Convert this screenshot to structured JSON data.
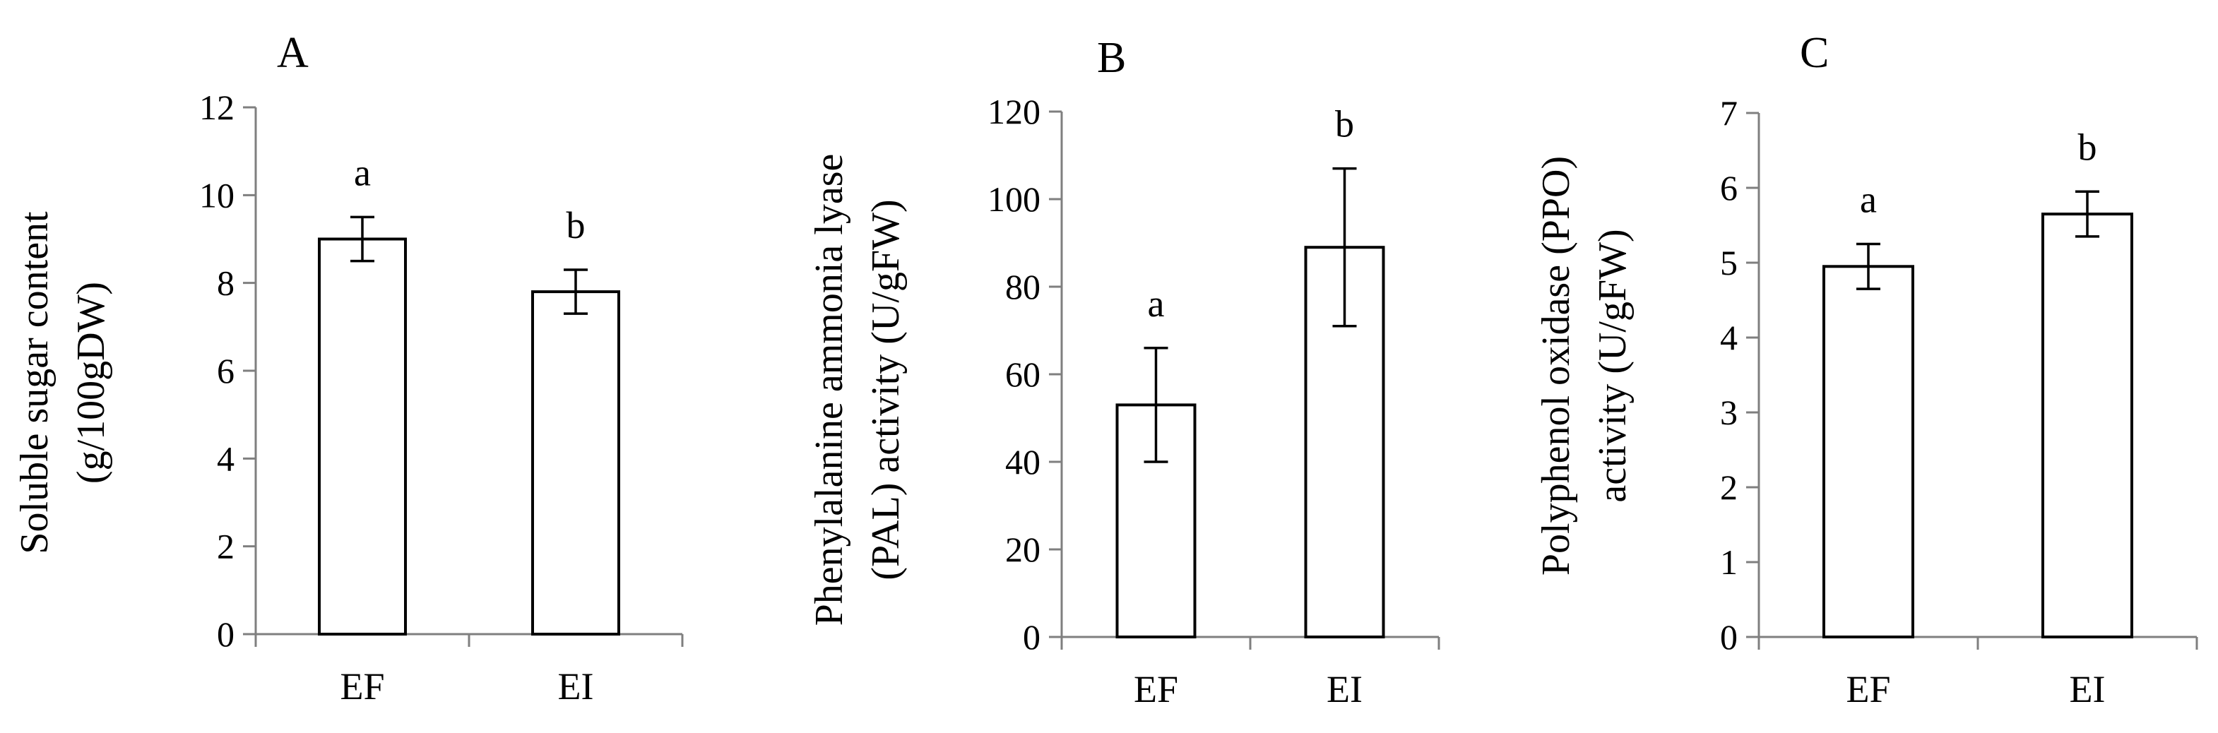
{
  "chart_data": [
    {
      "type": "bar",
      "panel_label": "A",
      "ylabel_lines": [
        "Soluble sugar content",
        "(g/100gDW)"
      ],
      "categories": [
        "EF",
        "EI"
      ],
      "values": [
        9.0,
        7.8
      ],
      "errors": [
        0.5,
        0.5
      ],
      "significance": [
        "a",
        "b"
      ],
      "ylim": [
        0,
        12
      ],
      "yticks": [
        0,
        2,
        4,
        6,
        8,
        10,
        12
      ],
      "grid": false,
      "legend": "none"
    },
    {
      "type": "bar",
      "panel_label": "B",
      "ylabel_lines": [
        "Phenylalanine ammonia lyase",
        "(PAL) activity (U/gFW)"
      ],
      "categories": [
        "EF",
        "EI"
      ],
      "values": [
        53,
        89
      ],
      "errors": [
        13,
        18
      ],
      "significance": [
        "a",
        "b"
      ],
      "ylim": [
        0,
        120
      ],
      "yticks": [
        0,
        20,
        40,
        60,
        80,
        100,
        120
      ],
      "grid": false,
      "legend": "none"
    },
    {
      "type": "bar",
      "panel_label": "C",
      "ylabel_lines": [
        "Polyphenol oxidase (PPO)",
        "activity (U/gFW)"
      ],
      "categories": [
        "EF",
        "EI"
      ],
      "values": [
        4.95,
        5.65
      ],
      "errors": [
        0.3,
        0.3
      ],
      "significance": [
        "a",
        "b"
      ],
      "ylim": [
        0,
        7
      ],
      "yticks": [
        0,
        1,
        2,
        3,
        4,
        5,
        6,
        7
      ],
      "grid": false,
      "legend": "none"
    }
  ]
}
